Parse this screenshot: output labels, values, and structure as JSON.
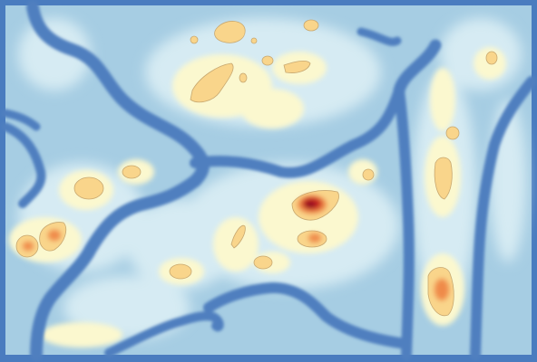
{
  "map": {
    "type": "terrain-heatmap",
    "colors": {
      "frame": "#4a7cbf",
      "river": "#4f7fbf",
      "lowland": "#a6cde3",
      "plain": "#d6ebf3",
      "highland": "#fbf8cf",
      "peak": "#f9d58b",
      "summit_orange": "#ef8a4a",
      "summit_red": "#c8231f",
      "summit_dark": "#8f0b24",
      "contour": "#c8a870"
    },
    "legend_visible": false,
    "title_visible": false,
    "hotspots": [
      {
        "id": "center-peak",
        "level": "max"
      },
      {
        "id": "right-lower-ridge",
        "level": "high"
      },
      {
        "id": "left-twin-peaks",
        "level": "high"
      },
      {
        "id": "center-lower",
        "level": "medium"
      }
    ]
  }
}
